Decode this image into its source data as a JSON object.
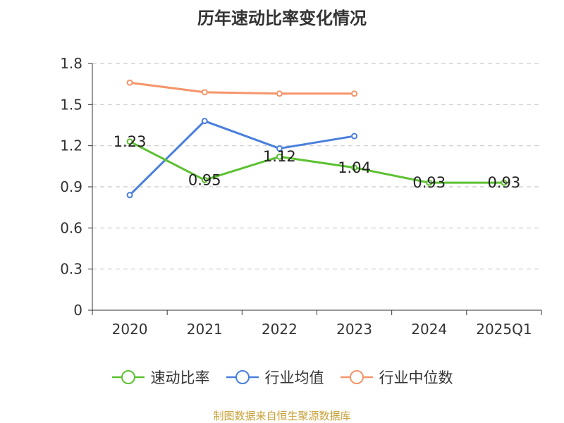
{
  "chart_data": {
    "type": "line",
    "title": "历年速动比率变化情况",
    "xlabel": "",
    "ylabel": "",
    "categories": [
      "2020",
      "2021",
      "2022",
      "2023",
      "2024",
      "2025Q1"
    ],
    "ylim": [
      0,
      1.8
    ],
    "yticks": [
      "0",
      "0.3",
      "0.6",
      "0.9",
      "1.2",
      "1.5",
      "1.8"
    ],
    "grid": "horizontal-dashed",
    "legend_position": "bottom",
    "series": [
      {
        "name": "速动比率",
        "color": "#5cc131",
        "values": [
          1.23,
          0.95,
          1.12,
          1.04,
          0.93,
          0.93
        ],
        "labels": [
          "1.23",
          "0.95",
          "1.12",
          "1.04",
          "0.93",
          "0.93"
        ],
        "show_labels": true
      },
      {
        "name": "行业均值",
        "color": "#4a7fdc",
        "values": [
          0.84,
          1.38,
          1.18,
          1.27,
          null,
          null
        ],
        "show_labels": false
      },
      {
        "name": "行业中位数",
        "color": "#f5956a",
        "values": [
          1.66,
          1.59,
          1.58,
          1.58,
          null,
          null
        ],
        "show_labels": false
      }
    ]
  },
  "source_note": "制图数据来自恒生聚源数据库"
}
